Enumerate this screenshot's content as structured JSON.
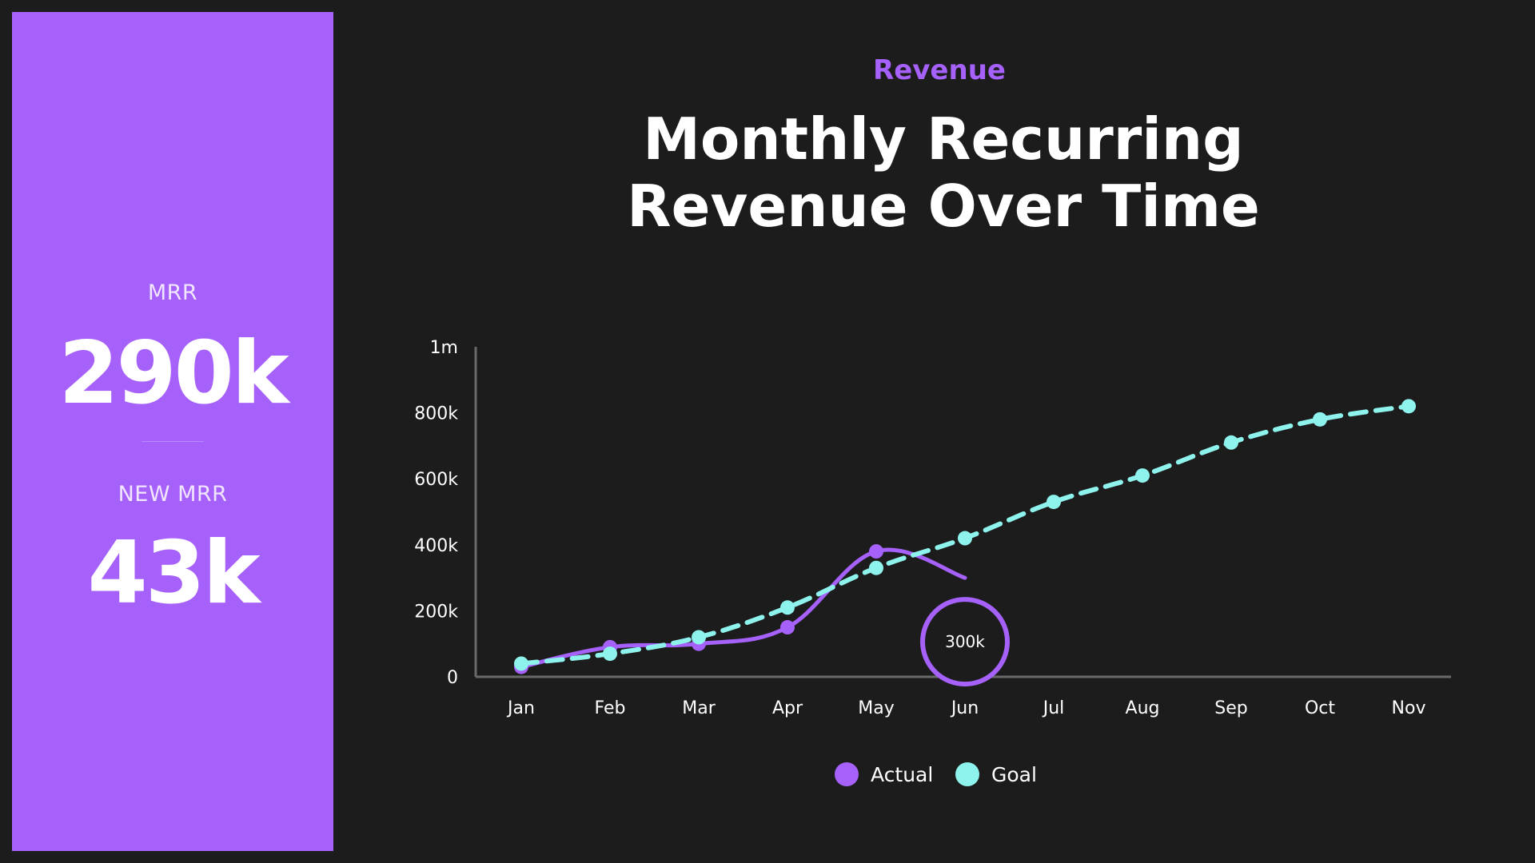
{
  "stats": {
    "mrr_label": "MRR",
    "mrr_value": "290k",
    "new_mrr_label": "NEW MRR",
    "new_mrr_value": "43k"
  },
  "header": {
    "eyebrow": "Revenue",
    "title": "Monthly Recurring Revenue Over Time"
  },
  "colors": {
    "accent": "#a661fb",
    "goal": "#8ff3ed",
    "background": "#1c1c1c",
    "panel": "#a661fb"
  },
  "chart_data": {
    "type": "line",
    "title": "Monthly Recurring Revenue Over Time",
    "xlabel": "",
    "ylabel": "",
    "categories": [
      "Jan",
      "Feb",
      "Mar",
      "Apr",
      "May",
      "Jun",
      "Jul",
      "Aug",
      "Sep",
      "Oct",
      "Nov"
    ],
    "ylim": [
      0,
      1000000
    ],
    "y_ticks": [
      0,
      200000,
      400000,
      600000,
      800000,
      1000000
    ],
    "y_tick_labels": [
      "0",
      "200k",
      "400k",
      "600k",
      "800k",
      "1m"
    ],
    "grid": false,
    "legend_position": "bottom",
    "series": [
      {
        "name": "Actual",
        "style": "solid",
        "color": "#a661fb",
        "values": [
          30000,
          90000,
          100000,
          150000,
          380000,
          300000,
          null,
          null,
          null,
          null,
          null
        ]
      },
      {
        "name": "Goal",
        "style": "dashed",
        "color": "#8ff3ed",
        "values": [
          40000,
          70000,
          120000,
          210000,
          330000,
          420000,
          530000,
          610000,
          710000,
          780000,
          820000
        ]
      }
    ],
    "annotations": [
      {
        "category": "Jun",
        "series": "Actual",
        "text": "300k"
      }
    ]
  }
}
